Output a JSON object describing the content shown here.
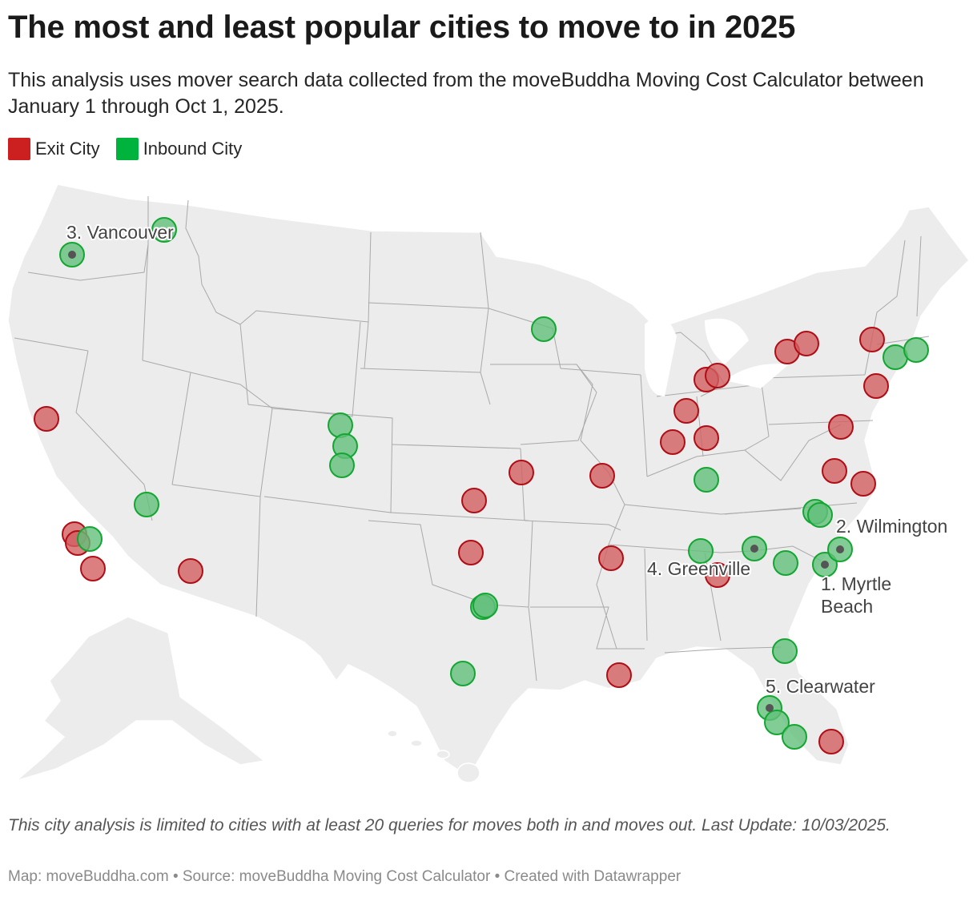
{
  "header": {
    "title": "The most and least popular cities to move to in 2025",
    "subtitle": "This analysis uses mover search data collected from the moveBuddha Moving Cost Calculator between January 1 through Oct 1, 2025."
  },
  "legend": {
    "items": [
      {
        "label": "Exit City",
        "color": "#cc1f1f"
      },
      {
        "label": "Inbound City",
        "color": "#00b33c"
      }
    ]
  },
  "colors": {
    "exit_fill": "#d25f62",
    "exit_stroke": "#b00d14",
    "inbound_fill": "#63c07a",
    "inbound_stroke": "#13a632",
    "land": "#ececec",
    "border": "#a9a9a9"
  },
  "labels": {
    "vancouver": "3. Vancouver",
    "wilmington": "2. Wilmington",
    "greenville": "4. Greenville",
    "myrtle_line1": "1. Myrtle",
    "myrtle_line2": "Beach",
    "clearwater": "5. Clearwater"
  },
  "footer": {
    "note": "This city analysis is limited to cities with at least 20 queries for moves both in and moves out.  Last Update: 10/03/2025.",
    "byline": "Map: moveBuddha.com • Source: moveBuddha Moving Cost Calculator • Created with Datawrapper"
  }
}
